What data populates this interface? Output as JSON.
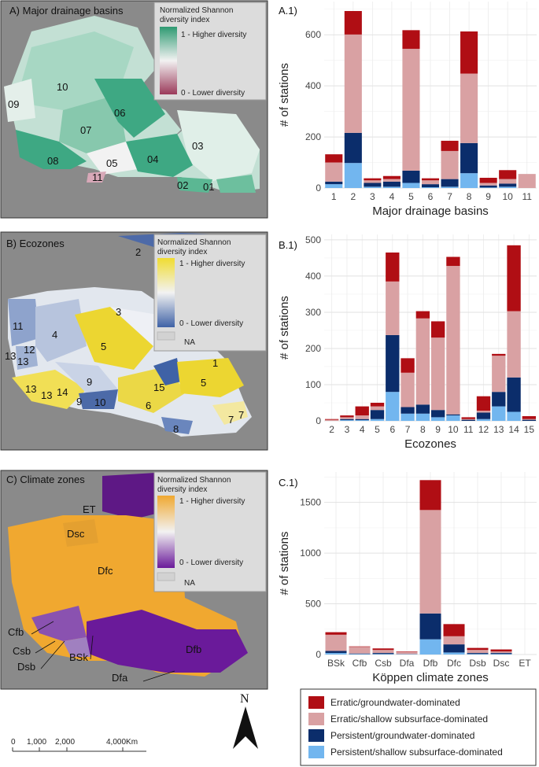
{
  "maps": [
    {
      "title": "A) Major drainage basins",
      "legend_title_1": "Normalized Shannon",
      "legend_title_2": "diversity index",
      "legend_high": "1 - Higher diversity",
      "legend_low": "0 - Lower diversity",
      "legend_na": "",
      "colors": {
        "high": "#2e9a72",
        "low": "#9b3a5a",
        "mid": "#f2f2f2"
      },
      "labels": [
        "10",
        "09",
        "07",
        "06",
        "03",
        "08",
        "05",
        "04",
        "11",
        "02",
        "01"
      ]
    },
    {
      "title": "B) Ecozones",
      "legend_title_1": "Normalized Shannon",
      "legend_title_2": "diversity index",
      "legend_high": "1 - Higher diversity",
      "legend_low": "0 - Lower diversity",
      "legend_na": "NA",
      "colors": {
        "high": "#f0dc30",
        "low": "#3f62a6",
        "mid": "#f2f2f2"
      },
      "labels": [
        "2",
        "1",
        "11",
        "4",
        "3",
        "5",
        "12",
        "13",
        "13",
        "5",
        "1",
        "9",
        "15",
        "13",
        "13",
        "14",
        "9",
        "10",
        "6",
        "7",
        "7",
        "8"
      ]
    },
    {
      "title": "C) Climate zones",
      "legend_title_1": "Normalized Shannon",
      "legend_title_2": "diversity index",
      "legend_high": "1 - Higher diversity",
      "legend_low": "0 - Lower diversity",
      "legend_na": "NA",
      "colors": {
        "high": "#f0a830",
        "low": "#6a1a9a",
        "mid": "#f2f2f2"
      },
      "labels": [
        "ET",
        "Dsc",
        "Dfc",
        "Cfb",
        "Csb",
        "Dsb",
        "BSk",
        "Dfb",
        "Dfa"
      ]
    }
  ],
  "scale_bar": {
    "ticks": [
      "0",
      "1,000",
      "2,000",
      "4,000Km"
    ]
  },
  "north_arrow": {
    "label": "N"
  },
  "legend": {
    "entries": [
      {
        "name": "Erratic/groundwater-dominated",
        "color": "#b00e14"
      },
      {
        "name": "Erratic/shallow subsurface-dominated",
        "color": "#d9a1a3"
      },
      {
        "name": "Persistent/groundwater-dominated",
        "color": "#0b2d6b"
      },
      {
        "name": "Persistent/shallow subsurface-dominated",
        "color": "#72b6ef"
      }
    ]
  },
  "chart_data": [
    {
      "type": "bar",
      "panel": "A.1)",
      "xlabel": "Major drainage basins",
      "ylabel": "# of stations",
      "ylim": [
        0,
        730
      ],
      "yticks": [
        0,
        200,
        400,
        600
      ],
      "categories": [
        "1",
        "2",
        "3",
        "4",
        "5",
        "6",
        "7",
        "8",
        "9",
        "10",
        "11"
      ],
      "stacked": true,
      "series": [
        {
          "name": "Persistent/shallow subsurface-dominated",
          "values": [
            15,
            98,
            5,
            5,
            20,
            3,
            5,
            58,
            2,
            5,
            0
          ]
        },
        {
          "name": "Persistent/groundwater-dominated",
          "values": [
            10,
            118,
            15,
            20,
            48,
            12,
            30,
            118,
            8,
            12,
            0
          ]
        },
        {
          "name": "Erratic/shallow subsurface-dominated",
          "values": [
            75,
            385,
            10,
            10,
            477,
            15,
            110,
            272,
            10,
            18,
            55
          ]
        },
        {
          "name": "Erratic/groundwater-dominated",
          "values": [
            32,
            92,
            8,
            12,
            73,
            8,
            40,
            165,
            20,
            35,
            0
          ]
        }
      ]
    },
    {
      "type": "bar",
      "panel": "B.1)",
      "xlabel": "Ecozones",
      "ylabel": "# of stations",
      "ylim": [
        0,
        515
      ],
      "yticks": [
        0,
        100,
        200,
        300,
        400,
        500
      ],
      "categories": [
        "2",
        "3",
        "4",
        "5",
        "6",
        "7",
        "8",
        "9",
        "10",
        "11",
        "12",
        "13",
        "14",
        "15"
      ],
      "stacked": true,
      "series": [
        {
          "name": "Persistent/shallow subsurface-dominated",
          "values": [
            0,
            2,
            2,
            5,
            80,
            20,
            20,
            10,
            15,
            0,
            5,
            40,
            25,
            0
          ]
        },
        {
          "name": "Persistent/groundwater-dominated",
          "values": [
            0,
            3,
            3,
            25,
            157,
            18,
            25,
            20,
            3,
            3,
            18,
            40,
            95,
            3
          ]
        },
        {
          "name": "Erratic/shallow subsurface-dominated",
          "values": [
            3,
            5,
            10,
            10,
            148,
            95,
            238,
            200,
            410,
            2,
            5,
            100,
            183,
            2
          ]
        },
        {
          "name": "Erratic/groundwater-dominated",
          "values": [
            2,
            5,
            25,
            10,
            80,
            40,
            20,
            45,
            25,
            5,
            40,
            5,
            182,
            8
          ]
        }
      ]
    },
    {
      "type": "bar",
      "panel": "C.1)",
      "xlabel": "Köppen climate zones",
      "ylabel": "# of stations",
      "ylim": [
        0,
        1800
      ],
      "yticks": [
        0,
        500,
        1000,
        1500
      ],
      "categories": [
        "BSk",
        "Cfb",
        "Csb",
        "Dfa",
        "Dfb",
        "Dfc",
        "Dsb",
        "Dsc",
        "ET"
      ],
      "stacked": true,
      "series": [
        {
          "name": "Persistent/shallow subsurface-dominated",
          "values": [
            15,
            5,
            5,
            3,
            150,
            20,
            5,
            5,
            0
          ]
        },
        {
          "name": "Persistent/groundwater-dominated",
          "values": [
            20,
            5,
            10,
            2,
            255,
            80,
            10,
            10,
            0
          ]
        },
        {
          "name": "Erratic/shallow subsurface-dominated",
          "values": [
            160,
            65,
            30,
            20,
            1020,
            80,
            30,
            15,
            0
          ]
        },
        {
          "name": "Erratic/groundwater-dominated",
          "values": [
            25,
            5,
            15,
            5,
            295,
            120,
            20,
            20,
            0
          ]
        }
      ]
    }
  ]
}
